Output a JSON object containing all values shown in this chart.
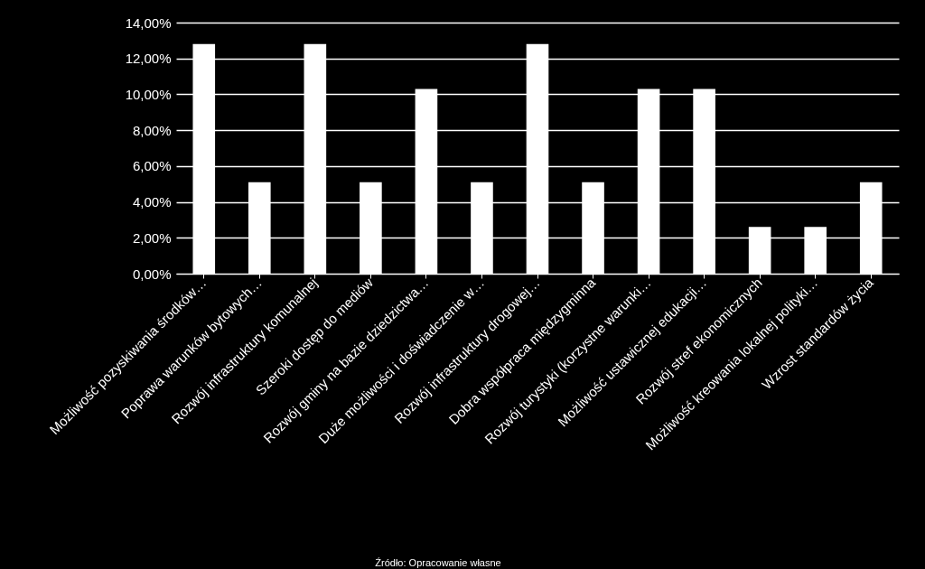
{
  "chart_data": {
    "type": "bar",
    "categories": [
      "Możliwość pozyskiwania środków…",
      "Poprawa warunków bytowych…",
      "Rozwój infrastruktury komunalnej",
      "Szeroki dostęp do mediów",
      "Rozwój gminy na bazie dziedzictwa…",
      "Duże możliwości i doświadczenie w…",
      "Rozwój infrastruktury drogowej…",
      "Dobra współpraca międzygminna",
      "Rozwój turystyki (korzystne warunki…",
      "Możliwość ustawicznej edukacji…",
      "Rozwój stref ekonomicznych",
      "Możliwość kreowania lokalnej polityki…",
      "Wzrost standardów życia"
    ],
    "values": [
      12.8,
      5.1,
      12.8,
      5.1,
      10.3,
      5.1,
      12.8,
      5.1,
      10.3,
      10.3,
      2.6,
      2.6,
      5.1
    ],
    "color": "#ffffff",
    "ylim": [
      0,
      14
    ],
    "yticks": [
      {
        "value": 0,
        "label": "0,00%"
      },
      {
        "value": 2,
        "label": "2,00%"
      },
      {
        "value": 4,
        "label": "4,00%"
      },
      {
        "value": 6,
        "label": "6,00%"
      },
      {
        "value": 8,
        "label": "8,00%"
      },
      {
        "value": 10,
        "label": "10,00%"
      },
      {
        "value": 12,
        "label": "12,00%"
      },
      {
        "value": 14,
        "label": "14,00%"
      }
    ],
    "grid": "y",
    "annotations": [
      "Źródło: Opracowanie własne"
    ]
  }
}
